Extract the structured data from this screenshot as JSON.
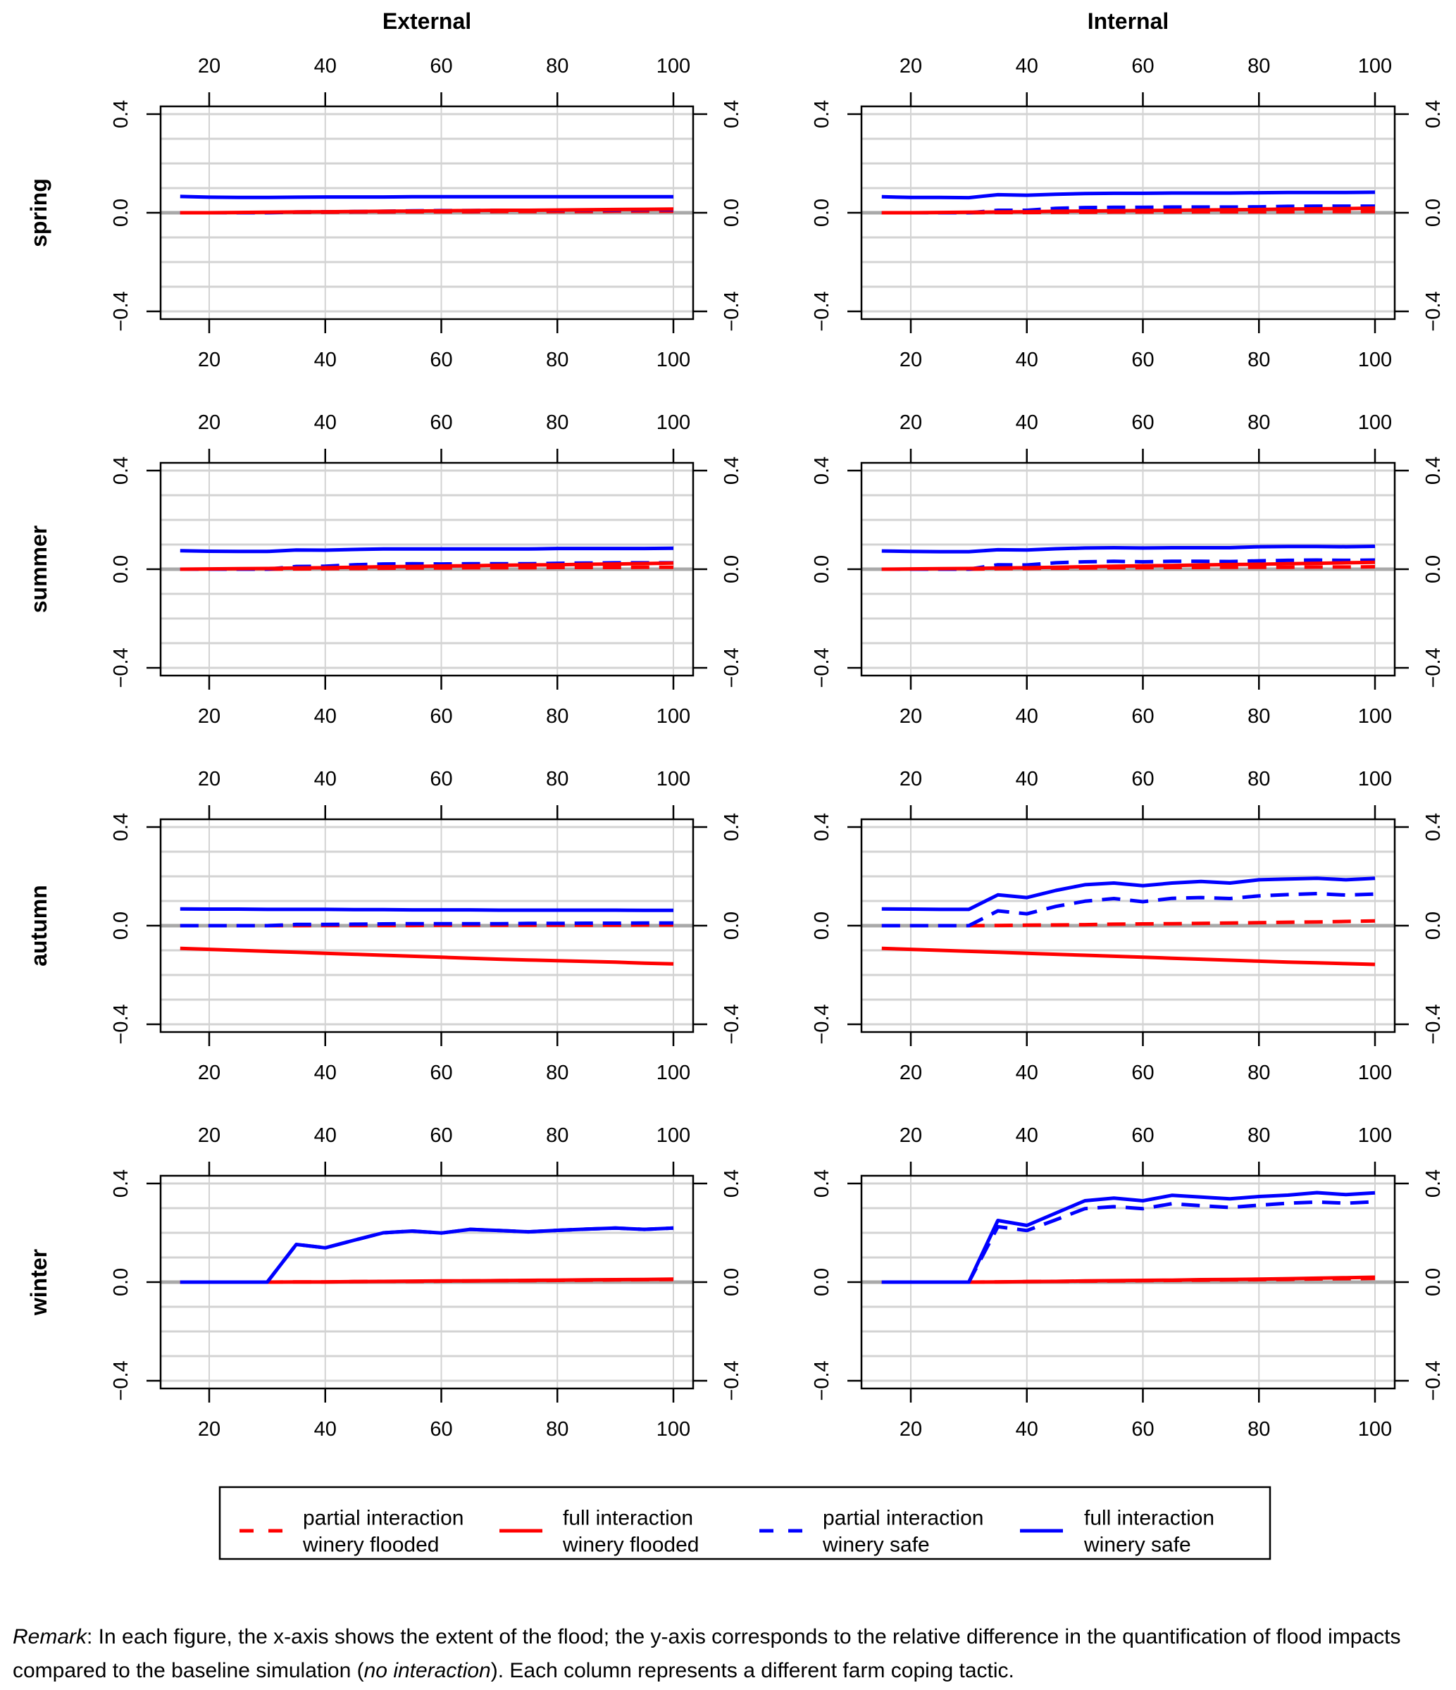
{
  "chart_data": {
    "type": "line",
    "layout": "4 rows × 2 columns of small multiples",
    "columns": [
      "External",
      "Internal"
    ],
    "rows": [
      "spring",
      "summer",
      "autumn",
      "winter"
    ],
    "x": [
      15,
      20,
      25,
      30,
      35,
      40,
      45,
      50,
      55,
      60,
      65,
      70,
      75,
      80,
      85,
      90,
      95,
      100
    ],
    "xticks": [
      20,
      40,
      60,
      80,
      100
    ],
    "xlim": [
      15,
      100
    ],
    "yticks": [
      -0.4,
      0.0,
      0.4
    ],
    "ytick_labels": [
      "−0.4",
      "0.0",
      "0.4"
    ],
    "ylim": [
      -0.45,
      0.45
    ],
    "grid": true,
    "grid_y_step": 0.1,
    "zero_line": true,
    "xlabel": "",
    "ylabel": "",
    "series_styles": [
      {
        "key": "partial_flooded",
        "name_line1": "partial interaction",
        "name_line2": "winery flooded",
        "color": "#ff0000",
        "dash": true
      },
      {
        "key": "full_flooded",
        "name_line1": "full interaction",
        "name_line2": "winery flooded",
        "color": "#ff0000",
        "dash": false
      },
      {
        "key": "partial_safe",
        "name_line1": "partial interaction",
        "name_line2": "winery safe",
        "color": "#0000ff",
        "dash": true
      },
      {
        "key": "full_safe",
        "name_line1": "full interaction",
        "name_line2": "winery safe",
        "color": "#0000ff",
        "dash": false
      }
    ],
    "legend_position": "bottom-center",
    "panels": [
      {
        "row": "spring",
        "column": "External",
        "series": {
          "partial_flooded": [
            0,
            0,
            0,
            0.001,
            0.002,
            0.002,
            0.003,
            0.003,
            0.004,
            0.004,
            0.004,
            0.005,
            0.005,
            0.005,
            0.005,
            0.006,
            0.006,
            0.006
          ],
          "full_flooded": [
            0,
            0,
            0.001,
            0.002,
            0.003,
            0.004,
            0.005,
            0.006,
            0.007,
            0.008,
            0.009,
            0.01,
            0.01,
            0.011,
            0.012,
            0.013,
            0.014,
            0.015
          ],
          "partial_safe": [
            0,
            0,
            0,
            0,
            0.003,
            0.004,
            0.005,
            0.006,
            0.008,
            0.009,
            0.009,
            0.01,
            0.01,
            0.01,
            0.011,
            0.011,
            0.012,
            0.012
          ],
          "full_safe": [
            0.066,
            0.063,
            0.062,
            0.062,
            0.063,
            0.064,
            0.064,
            0.064,
            0.065,
            0.065,
            0.065,
            0.065,
            0.065,
            0.065,
            0.065,
            0.065,
            0.065,
            0.065
          ]
        }
      },
      {
        "row": "spring",
        "column": "Internal",
        "series": {
          "partial_flooded": [
            0,
            0,
            0,
            0,
            0.001,
            0.001,
            0.002,
            0.002,
            0.003,
            0.003,
            0.003,
            0.004,
            0.004,
            0.004,
            0.004,
            0.005,
            0.005,
            0.005
          ],
          "full_flooded": [
            0,
            0,
            0.001,
            0.002,
            0.003,
            0.004,
            0.006,
            0.007,
            0.008,
            0.009,
            0.01,
            0.011,
            0.012,
            0.013,
            0.015,
            0.016,
            0.017,
            0.019
          ],
          "partial_safe": [
            0,
            0,
            0,
            0,
            0.01,
            0.01,
            0.018,
            0.021,
            0.022,
            0.022,
            0.023,
            0.023,
            0.023,
            0.024,
            0.026,
            0.027,
            0.027,
            0.027
          ],
          "full_safe": [
            0.065,
            0.062,
            0.062,
            0.061,
            0.073,
            0.071,
            0.075,
            0.078,
            0.079,
            0.079,
            0.08,
            0.08,
            0.08,
            0.081,
            0.082,
            0.082,
            0.082,
            0.083
          ]
        }
      },
      {
        "row": "summer",
        "column": "External",
        "series": {
          "partial_flooded": [
            0,
            0,
            0,
            0,
            0.001,
            0.002,
            0.003,
            0.004,
            0.005,
            0.005,
            0.006,
            0.006,
            0.006,
            0.007,
            0.007,
            0.007,
            0.008,
            0.008
          ],
          "full_flooded": [
            0,
            0.001,
            0.002,
            0.003,
            0.005,
            0.006,
            0.008,
            0.01,
            0.011,
            0.013,
            0.014,
            0.016,
            0.017,
            0.018,
            0.02,
            0.021,
            0.023,
            0.025
          ],
          "partial_safe": [
            0,
            0,
            0,
            0,
            0.011,
            0.012,
            0.018,
            0.021,
            0.022,
            0.021,
            0.022,
            0.022,
            0.022,
            0.024,
            0.025,
            0.026,
            0.026,
            0.026
          ],
          "full_safe": [
            0.075,
            0.073,
            0.072,
            0.072,
            0.078,
            0.077,
            0.08,
            0.082,
            0.082,
            0.082,
            0.082,
            0.082,
            0.082,
            0.084,
            0.084,
            0.084,
            0.084,
            0.085
          ]
        }
      },
      {
        "row": "summer",
        "column": "Internal",
        "series": {
          "partial_flooded": [
            0,
            0,
            0,
            0,
            0.002,
            0.003,
            0.004,
            0.005,
            0.006,
            0.006,
            0.007,
            0.007,
            0.008,
            0.008,
            0.008,
            0.009,
            0.009,
            0.01
          ],
          "full_flooded": [
            0,
            0.001,
            0.002,
            0.003,
            0.005,
            0.006,
            0.008,
            0.01,
            0.012,
            0.014,
            0.015,
            0.017,
            0.019,
            0.02,
            0.022,
            0.024,
            0.026,
            0.028
          ],
          "partial_safe": [
            0,
            0,
            0,
            0,
            0.018,
            0.017,
            0.026,
            0.03,
            0.032,
            0.03,
            0.032,
            0.032,
            0.031,
            0.034,
            0.036,
            0.037,
            0.036,
            0.037
          ],
          "full_safe": [
            0.074,
            0.072,
            0.071,
            0.071,
            0.079,
            0.078,
            0.083,
            0.086,
            0.087,
            0.086,
            0.087,
            0.087,
            0.087,
            0.091,
            0.092,
            0.092,
            0.091,
            0.093
          ]
        }
      },
      {
        "row": "autumn",
        "column": "External",
        "series": {
          "partial_flooded": [
            0,
            0,
            0,
            0,
            0,
            0.001,
            0.001,
            0.001,
            0.001,
            0.002,
            0.002,
            0.002,
            0.002,
            0.002,
            0.002,
            0.002,
            0.003,
            0.003
          ],
          "full_flooded": [
            -0.092,
            -0.096,
            -0.1,
            -0.104,
            -0.108,
            -0.112,
            -0.116,
            -0.12,
            -0.124,
            -0.128,
            -0.132,
            -0.136,
            -0.139,
            -0.142,
            -0.145,
            -0.148,
            -0.152,
            -0.155
          ],
          "partial_safe": [
            0,
            0,
            0,
            0,
            0.005,
            0.005,
            0.006,
            0.007,
            0.008,
            0.008,
            0.008,
            0.008,
            0.009,
            0.009,
            0.01,
            0.01,
            0.011,
            0.011
          ],
          "full_safe": [
            0.068,
            0.067,
            0.067,
            0.066,
            0.066,
            0.066,
            0.065,
            0.065,
            0.064,
            0.064,
            0.064,
            0.063,
            0.063,
            0.063,
            0.063,
            0.063,
            0.062,
            0.062
          ]
        }
      },
      {
        "row": "autumn",
        "column": "Internal",
        "series": {
          "partial_flooded": [
            0,
            0,
            0,
            0,
            0.001,
            0.002,
            0.003,
            0.004,
            0.006,
            0.007,
            0.008,
            0.009,
            0.011,
            0.012,
            0.014,
            0.015,
            0.017,
            0.019
          ],
          "full_flooded": [
            -0.092,
            -0.096,
            -0.1,
            -0.104,
            -0.108,
            -0.112,
            -0.116,
            -0.12,
            -0.124,
            -0.128,
            -0.132,
            -0.136,
            -0.14,
            -0.144,
            -0.148,
            -0.151,
            -0.154,
            -0.157
          ],
          "partial_safe": [
            0,
            0,
            0,
            0,
            0.06,
            0.048,
            0.078,
            0.099,
            0.11,
            0.097,
            0.111,
            0.114,
            0.11,
            0.121,
            0.126,
            0.13,
            0.124,
            0.128
          ],
          "full_safe": [
            0.068,
            0.067,
            0.066,
            0.066,
            0.125,
            0.114,
            0.143,
            0.166,
            0.173,
            0.162,
            0.173,
            0.179,
            0.173,
            0.186,
            0.189,
            0.192,
            0.186,
            0.192
          ]
        }
      },
      {
        "row": "winter",
        "column": "External",
        "series": {
          "partial_flooded": [
            0,
            0,
            0,
            0,
            0.001,
            0.001,
            0.002,
            0.003,
            0.003,
            0.004,
            0.005,
            0.006,
            0.006,
            0.007,
            0.008,
            0.009,
            0.01,
            0.011
          ],
          "full_flooded": [
            0,
            0,
            0,
            0,
            0.001,
            0.001,
            0.002,
            0.003,
            0.004,
            0.005,
            0.005,
            0.006,
            0.007,
            0.008,
            0.009,
            0.01,
            0.011,
            0.012
          ],
          "partial_safe": [
            0,
            0,
            0,
            0,
            0.153,
            0.139,
            0.17,
            0.2,
            0.207,
            0.199,
            0.214,
            0.209,
            0.204,
            0.21,
            0.215,
            0.219,
            0.214,
            0.219
          ],
          "full_safe": [
            0,
            0,
            0,
            0,
            0.153,
            0.139,
            0.17,
            0.2,
            0.207,
            0.199,
            0.214,
            0.209,
            0.204,
            0.21,
            0.215,
            0.219,
            0.214,
            0.219
          ]
        }
      },
      {
        "row": "winter",
        "column": "Internal",
        "series": {
          "partial_flooded": [
            0,
            0,
            0,
            0,
            0.001,
            0.002,
            0.003,
            0.004,
            0.005,
            0.006,
            0.007,
            0.008,
            0.009,
            0.01,
            0.011,
            0.013,
            0.014,
            0.015
          ],
          "full_flooded": [
            0,
            0,
            0,
            0,
            0.001,
            0.002,
            0.003,
            0.005,
            0.006,
            0.007,
            0.008,
            0.01,
            0.011,
            0.012,
            0.014,
            0.016,
            0.018,
            0.02
          ],
          "partial_safe": [
            0,
            0,
            0,
            0,
            0.225,
            0.209,
            0.253,
            0.298,
            0.306,
            0.298,
            0.318,
            0.31,
            0.303,
            0.312,
            0.32,
            0.325,
            0.32,
            0.326
          ],
          "full_safe": [
            0,
            0,
            0,
            0,
            0.25,
            0.23,
            0.28,
            0.33,
            0.341,
            0.33,
            0.352,
            0.345,
            0.338,
            0.347,
            0.353,
            0.363,
            0.355,
            0.362
          ]
        }
      }
    ]
  },
  "legend": {
    "items": [
      {
        "line1": "partial interaction",
        "line2": "winery flooded",
        "color": "#ff0000",
        "dash": true
      },
      {
        "line1": "full interaction",
        "line2": "winery flooded",
        "color": "#ff0000",
        "dash": false
      },
      {
        "line1": "partial interaction",
        "line2": "winery safe",
        "color": "#0000ff",
        "dash": true
      },
      {
        "line1": "full interaction",
        "line2": "winery safe",
        "color": "#0000ff",
        "dash": false
      }
    ]
  },
  "remark": {
    "label": "Remark",
    "text_1": ": In each figure, the x-axis shows the extent of the flood; the y-axis corresponds to the relative difference in the quantification of flood impacts compared to the baseline simulation (",
    "italic": "no interaction",
    "text_2": "). Each column represents a different farm coping tactic."
  },
  "colors": {
    "grid": "#d3d3d3",
    "zero_line": "#a9a9a9",
    "axis": "#000000"
  }
}
